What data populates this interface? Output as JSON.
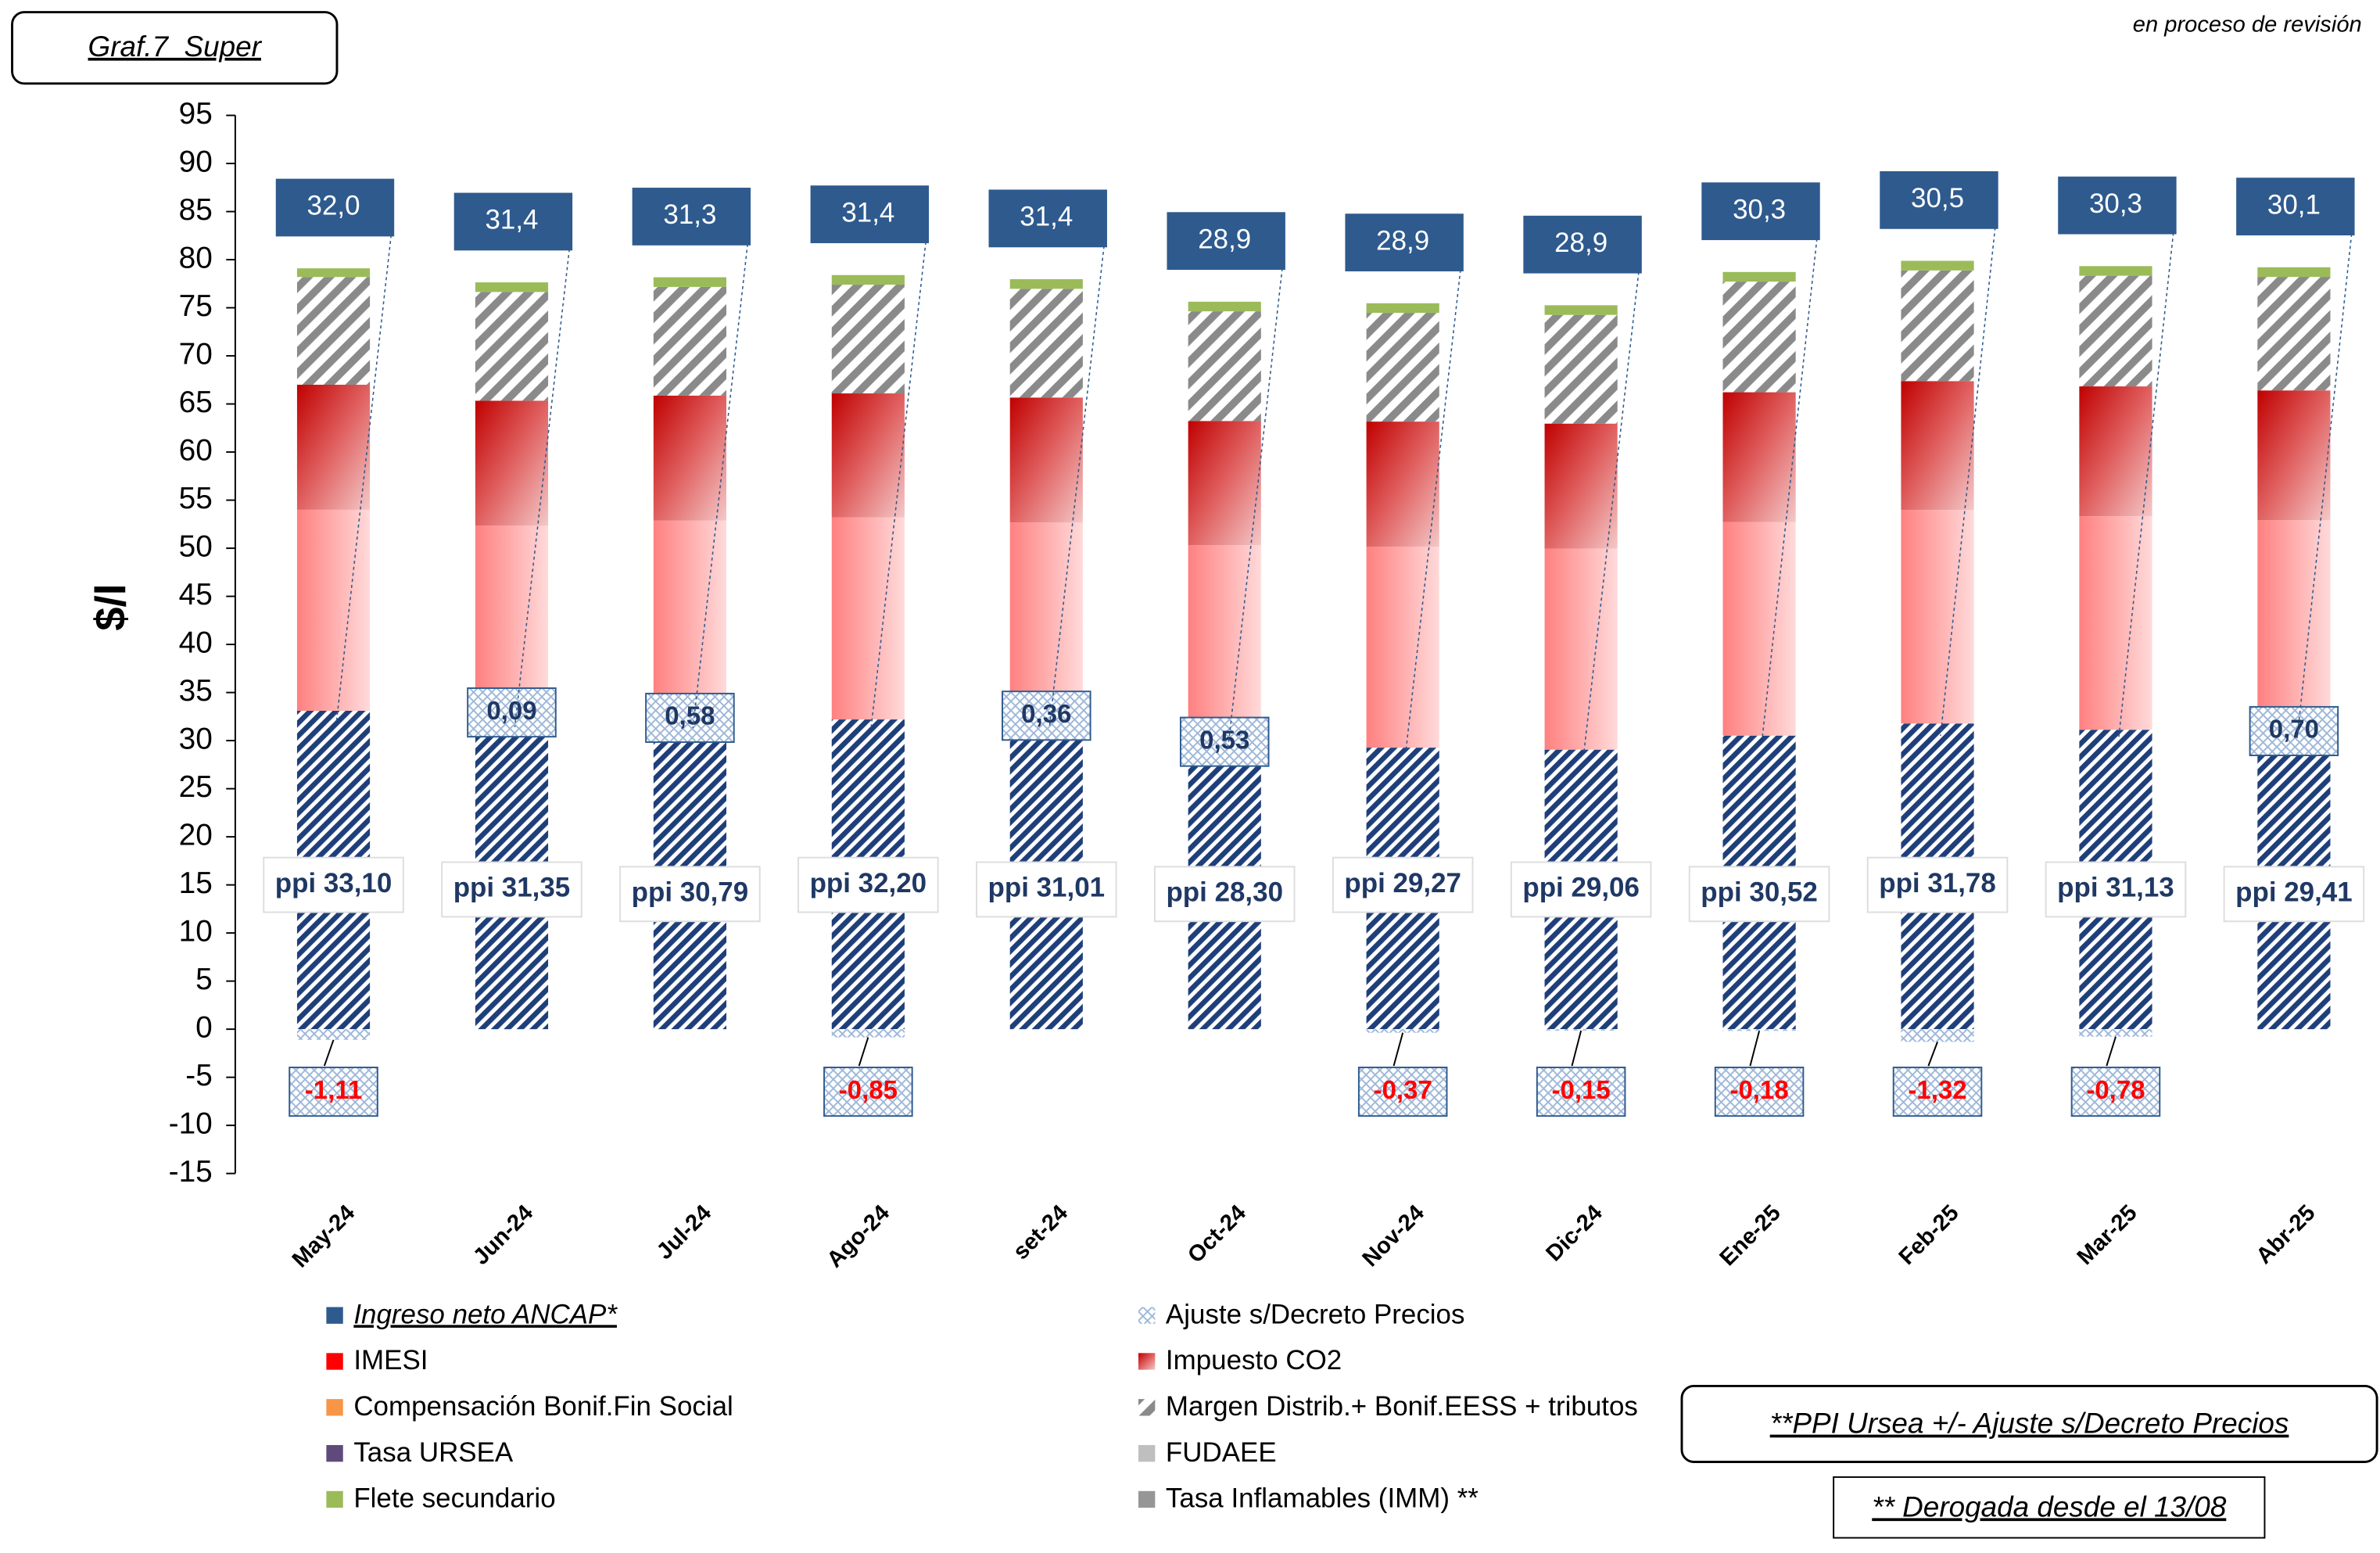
{
  "chart_data": {
    "type": "bar",
    "stacked": true,
    "title": "Graf.7_Super",
    "note": "en proceso de revisión",
    "ylabel": "$/l",
    "categories": [
      "May-24",
      "Jun-24",
      "Jul-24",
      "Ago-24",
      "set-24",
      "Oct-24",
      "Nov-24",
      "Dic-24",
      "Ene-25",
      "Feb-25",
      "Mar-25",
      "Abr-25"
    ],
    "ylim": [
      -15,
      95
    ],
    "yticks": [
      -15,
      -10,
      -5,
      0,
      5,
      10,
      15,
      20,
      25,
      30,
      35,
      40,
      45,
      50,
      55,
      60,
      65,
      70,
      75,
      80,
      85,
      90,
      95
    ],
    "ppi": {
      "color": "#1f3f7a",
      "values": [
        33.1,
        31.35,
        30.79,
        32.2,
        31.01,
        28.3,
        29.27,
        29.06,
        30.52,
        31.78,
        31.13,
        29.41
      ],
      "value_labels": [
        "ppi 33,10",
        "ppi 31,35",
        "ppi 30,79",
        "ppi 32,20",
        "ppi 31,01",
        "ppi 28,30",
        "ppi 29,27",
        "ppi 29,06",
        "ppi 30,52",
        "ppi 31,78",
        "ppi 31,13",
        "ppi 29,41"
      ]
    },
    "series": [
      {
        "name": "Ingreso neto ANCAP*",
        "color": "#2e5a8e",
        "values": [
          32.0,
          31.4,
          31.3,
          31.4,
          31.4,
          28.9,
          28.9,
          28.9,
          30.3,
          30.5,
          30.3,
          30.1
        ],
        "value_labels": [
          "32,0",
          "31,4",
          "31,3",
          "31,4",
          "31,4",
          "28,9",
          "28,9",
          "28,9",
          "30,3",
          "30,5",
          "30,3",
          "30,1"
        ]
      },
      {
        "name": "Ajuste s/Decreto Precios",
        "color": "#b8cce4",
        "values": [
          -1.11,
          0.09,
          0.58,
          -0.85,
          0.36,
          0.53,
          -0.37,
          -0.15,
          -0.18,
          -1.32,
          -0.78,
          0.7
        ],
        "value_labels": [
          "-1,11",
          "0,09",
          "0,58",
          "-0,85",
          "0,36",
          "0,53",
          "-0,37",
          "-0,15",
          "-0,18",
          "-1,32",
          "-0,78",
          "0,70"
        ]
      },
      {
        "name": "IMESI",
        "color": "#ff0000",
        "values": [
          20.9,
          20.9,
          21.5,
          21.0,
          21.3,
          21.5,
          20.9,
          20.9,
          22.2,
          22.2,
          22.2,
          22.8
        ]
      },
      {
        "name": "Impuesto CO2",
        "color": "#c0504d",
        "values": [
          13.0,
          13.0,
          13.0,
          12.9,
          13.0,
          12.9,
          13.0,
          13.0,
          13.5,
          13.4,
          13.5,
          13.5
        ]
      },
      {
        "name": "Compensación Bonif.Fin Social",
        "color": "#f79646",
        "values": [
          0,
          0,
          0,
          0,
          0,
          0,
          0,
          0,
          0,
          0,
          0,
          0
        ]
      },
      {
        "name": "Margen Distrib.+ Bonif.EESS + tributos",
        "color": "#808080",
        "values": [
          11.2,
          11.3,
          11.3,
          11.3,
          11.3,
          11.4,
          11.3,
          11.3,
          11.5,
          11.5,
          11.5,
          11.8
        ]
      },
      {
        "name": "Tasa URSEA",
        "color": "#604a7b",
        "values": [
          0,
          0,
          0,
          0,
          0,
          0,
          0,
          0,
          0,
          0,
          0,
          0
        ]
      },
      {
        "name": "FUDAEE",
        "color": "#bfbfbf",
        "values": [
          0,
          0,
          0,
          0,
          0,
          0,
          0,
          0,
          0,
          0,
          0,
          0
        ]
      },
      {
        "name": "Flete secundario",
        "color": "#9bbb59",
        "values": [
          0.9,
          1.0,
          1.0,
          1.0,
          1.0,
          1.0,
          1.0,
          1.0,
          1.0,
          1.0,
          1.0,
          1.0
        ]
      },
      {
        "name": "Tasa Inflamables (IMM) **",
        "color": "#969696",
        "values": [
          0,
          0,
          0,
          0,
          0,
          0,
          0,
          0,
          0,
          0,
          0,
          0
        ]
      }
    ],
    "annotations": [
      "**PPI Ursea +/- Ajuste s/Decreto Precios",
      "** Derogada desde el 13/08"
    ]
  }
}
